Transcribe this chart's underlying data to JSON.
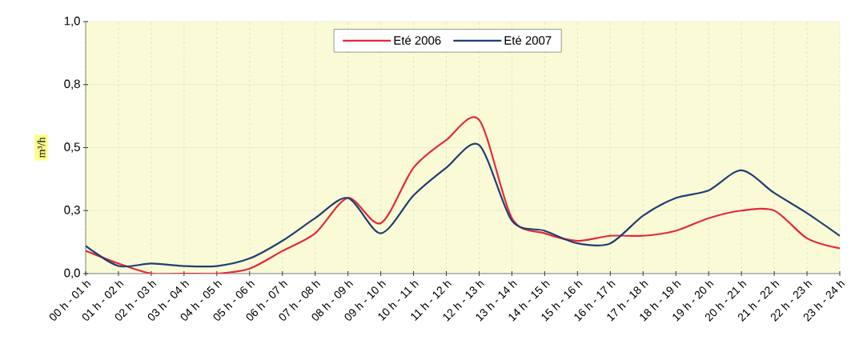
{
  "chart_data": {
    "type": "line",
    "ylabel": "m³/h",
    "categories": [
      "00 h - 01 h",
      "01 h - 02 h",
      "02 h - 03 h",
      "03 h - 04 h",
      "04 h - 05 h",
      "05 h - 06 h",
      "06 h - 07 h",
      "07 h - 08 h",
      "08 h - 09 h",
      "09 h - 10 h",
      "10 h - 11 h",
      "11 h - 12 h",
      "12 h - 13 h",
      "13 h - 14 h",
      "14 h - 15 h",
      "15 h - 16 h",
      "16 h - 17 h",
      "17 h - 18 h",
      "18 h - 19 h",
      "19 h - 20 h",
      "20 h - 21 h",
      "21 h - 22 h",
      "22 h - 23 h",
      "23 h - 24 h"
    ],
    "series": [
      {
        "name": "Eté 2006",
        "color": "#e5283a",
        "values": [
          0.09,
          0.04,
          0.0,
          0.0,
          0.0,
          0.02,
          0.09,
          0.16,
          0.3,
          0.2,
          0.42,
          0.53,
          0.61,
          0.22,
          0.16,
          0.13,
          0.15,
          0.15,
          0.17,
          0.22,
          0.25,
          0.25,
          0.14,
          0.1
        ]
      },
      {
        "name": "Eté 2007",
        "color": "#1f3f73",
        "values": [
          0.11,
          0.03,
          0.04,
          0.03,
          0.03,
          0.06,
          0.13,
          0.22,
          0.3,
          0.16,
          0.31,
          0.42,
          0.51,
          0.21,
          0.17,
          0.12,
          0.12,
          0.23,
          0.3,
          0.33,
          0.41,
          0.32,
          0.24,
          0.15
        ]
      }
    ],
    "ylim": [
      0,
      1
    ],
    "yticks": [
      {
        "value": 0,
        "label": "0,0"
      },
      {
        "value": 0.25,
        "label": "0,3"
      },
      {
        "value": 0.5,
        "label": "0,5"
      },
      {
        "value": 0.75,
        "label": "0,8"
      },
      {
        "value": 1,
        "label": "1,0"
      }
    ],
    "grid": true,
    "legend": "top",
    "marker": "none",
    "line_style": "solid"
  }
}
